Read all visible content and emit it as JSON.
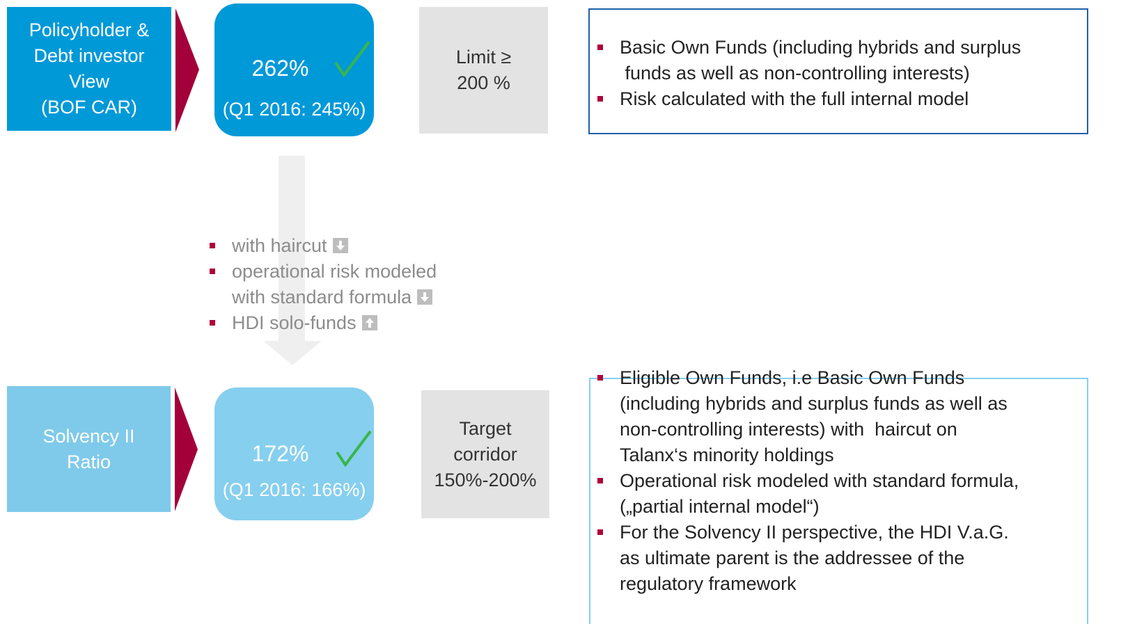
{
  "top": {
    "label": [
      "Policyholder &",
      "Debt investor",
      "View",
      "(BOF CAR)"
    ],
    "ratio": "262%",
    "prior": "(Q1 2016: 245%)",
    "limit": [
      "Limit ≥",
      "200 %"
    ],
    "bullets": [
      [
        "Basic Own Funds (including hybrids and surplus",
        " funds as well as non-controlling interests)"
      ],
      [
        "Risk calculated with the full internal model"
      ]
    ]
  },
  "middle": {
    "bullets": [
      [
        "with haircut"
      ],
      [
        "operational risk modeled",
        "with standard formula"
      ],
      [
        "HDI solo-funds"
      ]
    ]
  },
  "bottom": {
    "label": [
      "Solvency II",
      "Ratio"
    ],
    "ratio": "172%",
    "prior": "(Q1 2016: 166%)",
    "limit": [
      "Target",
      "corridor",
      "150%-200%"
    ],
    "bullets": [
      [
        "Eligible Own Funds, i.e Basic Own Funds",
        "(including hybrids and surplus funds as well as",
        "non-controlling interests) with  haircut on",
        "Talanx‘s minority holdings"
      ],
      [
        "Operational risk modeled with standard formula,",
        "(„partial internal model“)"
      ],
      [
        "For the Solvency II perspective, the HDI V.a.G.",
        "as ultimate parent is the addressee of the",
        "regulatory framework"
      ]
    ]
  }
}
